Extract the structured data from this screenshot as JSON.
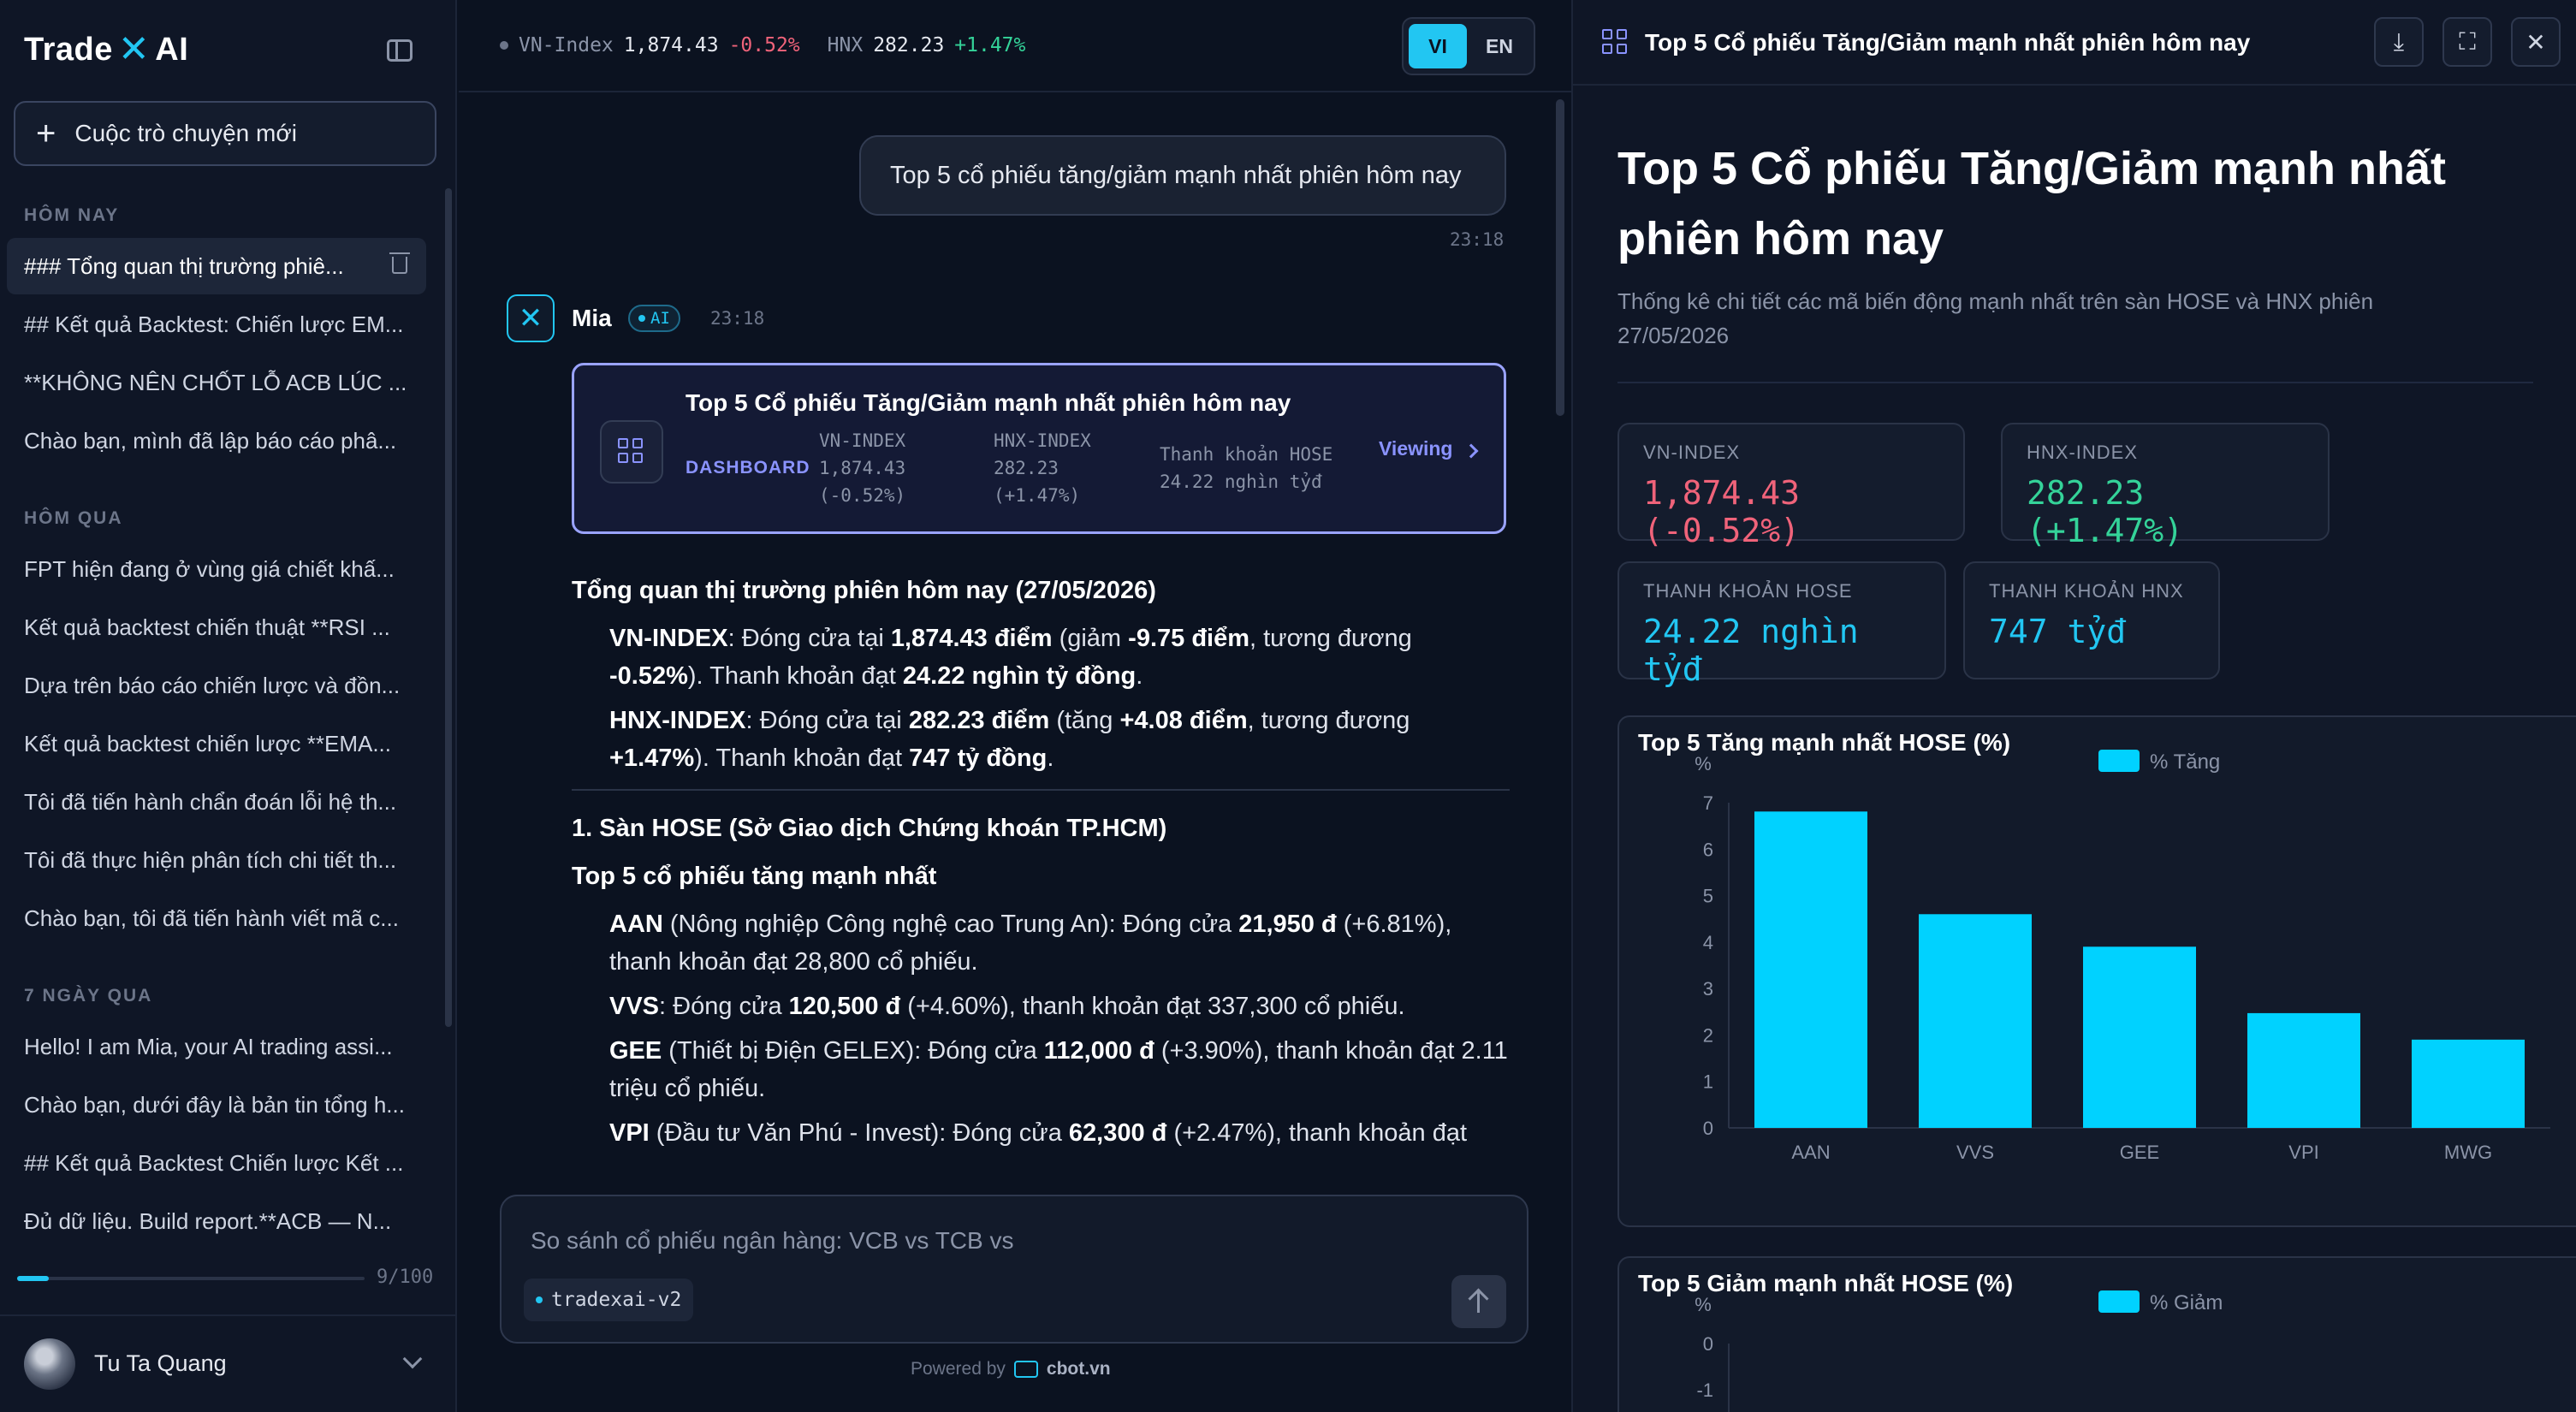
{
  "app": {
    "logo_left": "Trade",
    "logo_x": "✕",
    "logo_right": "AI"
  },
  "sidebar": {
    "new_chat": "Cuộc trò chuyện mới",
    "sections": [
      {
        "title": "HÔM NAY",
        "items": [
          "### Tổng quan thị trường phiê...",
          "## Kết quả Backtest: Chiến lược EM...",
          "**KHÔNG NÊN CHỐT LỖ ACB LÚC ...",
          "Chào bạn, mình đã lập báo cáo phâ..."
        ]
      },
      {
        "title": "HÔM QUA",
        "items": [
          "FPT hiện đang ở vùng giá chiết khấ...",
          "Kết quả backtest chiến thuật **RSI ...",
          "Dựa trên báo cáo chiến lược và đồn...",
          "Kết quả backtest chiến lược **EMA...",
          "Tôi đã tiến hành chẩn đoán lỗi hệ th...",
          "Tôi đã thực hiện phân tích chi tiết th...",
          "Chào bạn, tôi đã tiến hành viết mã c..."
        ]
      },
      {
        "title": "7 NGÀY QUA",
        "items": [
          "Hello! I am Mia, your AI trading assi...",
          "Chào bạn, dưới đây là bản tin tổng h...",
          "## Kết quả Backtest Chiến lược Kết ...",
          "Đủ dữ liệu. Build report.**ACB — N..."
        ]
      }
    ],
    "quota": {
      "used": 9,
      "total": 100,
      "text": "9/100"
    },
    "user_name": "Tu Ta Quang"
  },
  "topbar": {
    "vn_label": "VN-Index",
    "vn_value": "1,874.43",
    "vn_change": "-0.52%",
    "hnx_label": "HNX",
    "hnx_value": "282.23",
    "hnx_change": "+1.47%",
    "lang_vi": "VI",
    "lang_en": "EN"
  },
  "chat": {
    "user_message": "Top 5 cổ phiếu tăng/giảm mạnh nhất phiên hôm nay",
    "user_time": "23:18",
    "bot_name": "Mia",
    "bot_badge": "AI",
    "bot_time": "23:18",
    "card": {
      "title": "Top 5 Cổ phiếu Tăng/Giảm mạnh nhất phiên hôm nay",
      "kind": "DASHBOARD",
      "m1_label": "VN-INDEX",
      "m1_value": "1,874.43",
      "m1_change": "(-0.52%)",
      "m2_label": "HNX-INDEX",
      "m2_value": "282.23",
      "m2_change": "(+1.47%)",
      "m3_label": "Thanh khoản HOSE",
      "m3_value": "24.22 nghìn tỷđ",
      "viewing": "Viewing"
    },
    "md": {
      "h1": "Tổng quan thị trường phiên hôm nay (27/05/2026)",
      "vn_a": "VN-INDEX",
      "vn_b": ": Đóng cửa tại ",
      "vn_c": "1,874.43 điểm",
      "vn_d": " (giảm ",
      "vn_e": "-9.75 điểm",
      "vn_f": ", tương đương ",
      "vn_g": "-0.52%",
      "vn_h": "). Thanh khoản đạt ",
      "vn_i": "24.22 nghìn tỷ đồng",
      "vn_j": ".",
      "hx_a": "HNX-INDEX",
      "hx_b": ": Đóng cửa tại ",
      "hx_c": "282.23 điểm",
      "hx_d": " (tăng ",
      "hx_e": "+4.08 điểm",
      "hx_f": ", tương đương ",
      "hx_g": "+1.47%",
      "hx_h": "). Thanh khoản đạt ",
      "hx_i": "747 tỷ đồng",
      "hx_j": ".",
      "h2": "1. Sàn HOSE (Sở Giao dịch Chứng khoán TP.HCM)",
      "h3": "Top 5 cổ phiếu tăng mạnh nhất",
      "s1_a": "AAN",
      "s1_b": " (Nông nghiệp Công nghệ cao Trung An): Đóng cửa ",
      "s1_c": "21,950 đ",
      "s1_d": " (+6.81%), thanh khoản đạt 28,800 cổ phiếu.",
      "s2_a": "VVS",
      "s2_b": ": Đóng cửa ",
      "s2_c": "120,500 đ",
      "s2_d": " (+4.60%), thanh khoản đạt 337,300 cổ phiếu.",
      "s3_a": "GEE",
      "s3_b": " (Thiết bị Điện GELEX): Đóng cửa ",
      "s3_c": "112,000 đ",
      "s3_d": " (+3.90%), thanh khoản đạt 2.11 triệu cổ phiếu.",
      "s4_a": "VPI",
      "s4_b": " (Đầu tư Văn Phú - Invest): Đóng cửa ",
      "s4_c": "62,300 đ",
      "s4_d": " (+2.47%), thanh khoản đạt"
    }
  },
  "composer": {
    "placeholder": "So sánh cổ phiếu ngân hàng: VCB vs TCB vs",
    "model": "tradexai-v2",
    "powered_by": "Powered by",
    "brand": "cbot.vn"
  },
  "panel": {
    "header_title": "Top 5 Cổ phiếu Tăng/Giảm mạnh nhất phiên hôm nay",
    "title": "Top 5 Cổ phiếu Tăng/Giảm mạnh nhất phiên hôm nay",
    "subtitle": "Thống kê chi tiết các mã biến động mạnh nhất trên sàn HOSE và HNX phiên 27/05/2026",
    "stats": [
      {
        "label": "VN-INDEX",
        "value": "1,874.43 (-0.52%)"
      },
      {
        "label": "HNX-INDEX",
        "value": "282.23 (+1.47%)"
      },
      {
        "label": "THANH KHOẢN HOSE",
        "value": "24.22 nghìn tỷđ"
      },
      {
        "label": "THANH KHOẢN HNX",
        "value": "747 tỷđ"
      }
    ],
    "colors": {
      "neg": "#f0637a",
      "pos": "#34d399",
      "accent": "#22c6f2"
    }
  },
  "chart_data": [
    {
      "type": "bar",
      "title": "Top 5 Tăng mạnh nhất HOSE (%)",
      "ylabel": "%",
      "legend": "% Tăng",
      "legend_position": "top",
      "categories": [
        "AAN",
        "VVS",
        "GEE",
        "VPI",
        "MWG"
      ],
      "series": [
        {
          "name": "% Tăng",
          "values": [
            6.81,
            4.6,
            3.9,
            2.47,
            1.9
          ]
        }
      ],
      "ylim": [
        0,
        7
      ],
      "yticks": [
        0,
        1,
        2,
        3,
        4,
        5,
        6,
        7
      ],
      "color": "#00d2ff",
      "grid": false
    },
    {
      "type": "bar",
      "title": "Top 5 Giảm mạnh nhất HOSE (%)",
      "ylabel": "%",
      "legend": "% Giảm",
      "legend_position": "top",
      "yticks": [
        0,
        -1
      ],
      "color": "#00d2ff",
      "grid": false
    }
  ]
}
